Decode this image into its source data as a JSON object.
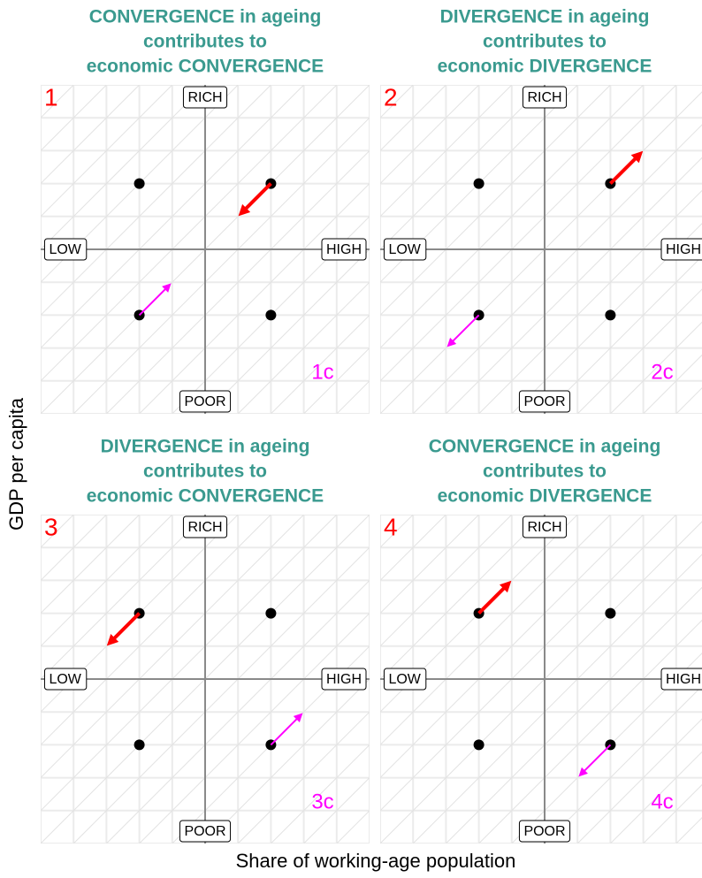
{
  "axis_labels": {
    "y": "GDP per capita",
    "x": "Share of working-age population"
  },
  "quadrant_labels": {
    "top": "RICH",
    "bottom": "POOR",
    "left": "LOW",
    "right": "HIGH"
  },
  "panels": [
    {
      "number": "1",
      "title": [
        "CONVERGENCE in ageing",
        "contributes to",
        "economic CONVERGENCE"
      ],
      "corner_label": "1c"
    },
    {
      "number": "2",
      "title": [
        "DIVERGENCE in ageing",
        "contributes to",
        "economic DIVERGENCE"
      ],
      "corner_label": "2c"
    },
    {
      "number": "3",
      "title": [
        "DIVERGENCE in ageing",
        "contributes to",
        "economic CONVERGENCE"
      ],
      "corner_label": "3c"
    },
    {
      "number": "4",
      "title": [
        "CONVERGENCE in ageing",
        "contributes to",
        "economic DIVERGENCE"
      ],
      "corner_label": "4c"
    }
  ]
}
